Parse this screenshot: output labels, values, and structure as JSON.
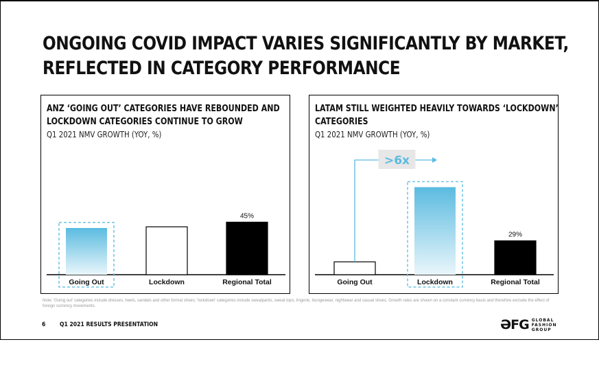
{
  "slide": {
    "title_lines": [
      "ONGOING COVID IMPACT VARIES SIGNIFICANTLY BY MARKET,",
      "REFLECTED IN CATEGORY PERFORMANCE"
    ],
    "footnote": "Note: 'Going out' categories include dresses, heels, sandals and other formal shoes; 'lockdown' categories include sweatpants, sweat tops, lingerie, loungewear, nightwear and casual shoes. Growth rates are shown on a constant currency basis and therefore exclude the effect of foreign currency movements.",
    "page_number": "6",
    "presentation_name": "Q1 2021 RESULTS PRESENTATION",
    "logo": {
      "mark": "ƏFG",
      "words": [
        "GLOBAL",
        "FASHION",
        "GROUP"
      ]
    }
  },
  "colors": {
    "accent": "#5bbbe0",
    "accent_light": "#e9f6fb",
    "dark": "#000000",
    "dashed": "#6cc3e6"
  },
  "left_panel": {
    "title_lines": [
      "ANZ ‘GOING OUT’ CATEGORIES HAVE REBOUNDED AND",
      "LOCKDOWN CATEGORIES CONTINUE TO GROW"
    ],
    "subtitle": "Q1 2021 NMV GROWTH (YOY, %)"
  },
  "right_panel": {
    "title_lines": [
      "LATAM STILL WEIGHTED HEAVILY TOWARDS ‘LOCKDOWN’",
      "CATEGORIES"
    ],
    "subtitle": "Q1 2021 NMV GROWTH (YOY, %)",
    "callout": ">6x"
  },
  "chart_data": [
    {
      "type": "bar",
      "title": "ANZ ‘GOING OUT’ CATEGORIES HAVE REBOUNDED AND LOCKDOWN CATEGORIES CONTINUE TO GROW",
      "ylabel": "Q1 2021 NMV GROWTH (YOY, %)",
      "categories": [
        "Going Out",
        "Lockdown",
        "Regional Total"
      ],
      "values": [
        40,
        41,
        45
      ],
      "data_labels": [
        "",
        "",
        "45%"
      ],
      "styles": [
        "gradient",
        "outline",
        "solid"
      ],
      "highlight": [
        true,
        false,
        false
      ],
      "ylim": [
        0,
        100
      ]
    },
    {
      "type": "bar",
      "title": "LATAM STILL WEIGHTED HEAVILY TOWARDS ‘LOCKDOWN’ CATEGORIES",
      "ylabel": "Q1 2021 NMV GROWTH (YOY, %)",
      "categories": [
        "Going Out",
        "Lockdown",
        "Regional Total"
      ],
      "values": [
        11,
        75,
        29
      ],
      "data_labels": [
        "",
        "",
        "29%"
      ],
      "styles": [
        "outline",
        "gradient",
        "solid"
      ],
      "highlight": [
        false,
        true,
        false
      ],
      "ylim": [
        0,
        100
      ]
    }
  ]
}
